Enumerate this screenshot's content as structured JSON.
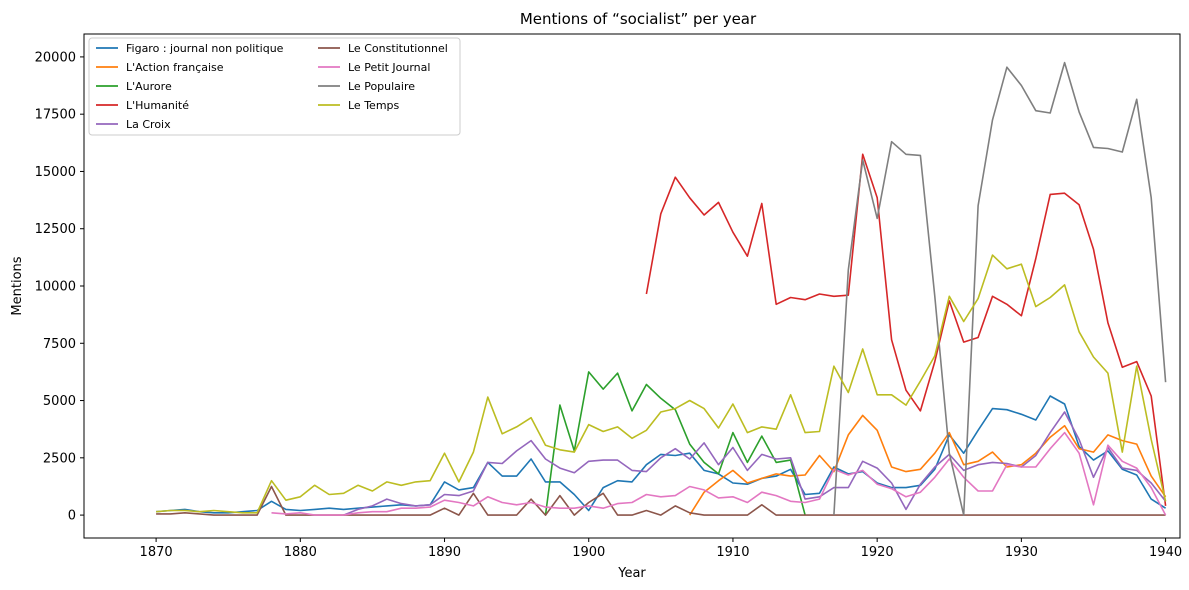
{
  "chart_data": {
    "type": "line",
    "title": "Mentions of “socialist” per year",
    "xlabel": "Year",
    "ylabel": "Mentions",
    "xlim": [
      1865,
      1941
    ],
    "ylim": [
      -1000,
      21000
    ],
    "xticks": [
      1870,
      1880,
      1890,
      1900,
      1910,
      1920,
      1930,
      1940
    ],
    "yticks": [
      0,
      2500,
      5000,
      7500,
      10000,
      12500,
      15000,
      17500,
      20000
    ],
    "grid": false,
    "legend_position": "top-left",
    "x": [
      1870,
      1871,
      1872,
      1873,
      1874,
      1875,
      1876,
      1877,
      1878,
      1879,
      1880,
      1881,
      1882,
      1883,
      1884,
      1885,
      1886,
      1887,
      1888,
      1889,
      1890,
      1891,
      1892,
      1893,
      1894,
      1895,
      1896,
      1897,
      1898,
      1899,
      1900,
      1901,
      1902,
      1903,
      1904,
      1905,
      1906,
      1907,
      1908,
      1909,
      1910,
      1911,
      1912,
      1913,
      1914,
      1915,
      1916,
      1917,
      1918,
      1919,
      1920,
      1921,
      1922,
      1923,
      1924,
      1925,
      1926,
      1927,
      1928,
      1929,
      1930,
      1931,
      1932,
      1933,
      1934,
      1935,
      1936,
      1937,
      1938,
      1939,
      1940
    ],
    "series": [
      {
        "name": "Figaro : journal non politique",
        "color": "#1f77b4",
        "values": [
          150,
          200,
          250,
          150,
          100,
          100,
          150,
          200,
          600,
          250,
          200,
          250,
          300,
          250,
          300,
          350,
          400,
          450,
          400,
          450,
          1450,
          1100,
          1200,
          2300,
          1700,
          1700,
          2450,
          1450,
          1450,
          900,
          200,
          1200,
          1500,
          1450,
          2200,
          2650,
          2600,
          2700,
          1950,
          1800,
          1400,
          1350,
          1600,
          1700,
          2000,
          900,
          950,
          2100,
          1800,
          1900,
          1400,
          1200,
          1200,
          1300,
          2000,
          3500,
          2700,
          3700,
          4650,
          4600,
          4400,
          4150,
          5200,
          4850,
          3000,
          2400,
          2800,
          2000,
          1750,
          700,
          300
        ]
      },
      {
        "name": "L'Action française",
        "color": "#ff7f0e",
        "values": [
          null,
          null,
          null,
          null,
          null,
          null,
          null,
          null,
          null,
          null,
          null,
          null,
          null,
          null,
          null,
          null,
          null,
          null,
          null,
          null,
          null,
          null,
          null,
          null,
          null,
          null,
          null,
          null,
          null,
          null,
          null,
          null,
          null,
          null,
          null,
          null,
          null,
          0,
          1000,
          1500,
          1950,
          1400,
          1600,
          1800,
          1700,
          1750,
          2600,
          1900,
          3500,
          4350,
          3700,
          2100,
          1900,
          2000,
          2700,
          3600,
          2200,
          2350,
          2750,
          2100,
          2200,
          2700,
          3400,
          3900,
          2900,
          2750,
          3500,
          3250,
          3100,
          1700,
          800
        ]
      },
      {
        "name": "L'Aurore",
        "color": "#2ca02c",
        "values": [
          null,
          null,
          null,
          null,
          null,
          null,
          null,
          null,
          null,
          null,
          null,
          null,
          null,
          null,
          null,
          null,
          null,
          null,
          null,
          null,
          null,
          null,
          null,
          null,
          null,
          null,
          null,
          0,
          4800,
          2800,
          6250,
          5500,
          6200,
          4550,
          5700,
          5100,
          4600,
          3100,
          2300,
          1800,
          3600,
          2300,
          3450,
          2300,
          2400,
          0,
          null,
          null,
          null,
          null,
          null,
          null,
          null,
          null,
          null,
          null,
          null,
          null,
          null,
          null,
          null,
          null,
          null,
          null,
          null,
          null,
          null,
          null,
          null,
          null,
          null
        ]
      },
      {
        "name": "L'Humanité",
        "color": "#d62728",
        "values": [
          null,
          null,
          null,
          null,
          null,
          null,
          null,
          null,
          null,
          null,
          null,
          null,
          null,
          null,
          null,
          null,
          null,
          null,
          null,
          null,
          null,
          null,
          null,
          null,
          null,
          null,
          null,
          null,
          null,
          null,
          null,
          null,
          null,
          null,
          9650,
          13150,
          14750,
          13850,
          13100,
          13650,
          12350,
          11300,
          13600,
          9200,
          9500,
          9400,
          9650,
          9550,
          9600,
          15750,
          13850,
          7650,
          5450,
          4550,
          6700,
          9350,
          7550,
          7750,
          9550,
          9200,
          8700,
          11200,
          14000,
          14050,
          13550,
          11600,
          8400,
          6450,
          6700,
          5200,
          400
        ]
      },
      {
        "name": "La Croix",
        "color": "#9467bd",
        "values": [
          null,
          null,
          null,
          null,
          null,
          null,
          null,
          null,
          null,
          null,
          null,
          null,
          null,
          0,
          250,
          400,
          700,
          500,
          400,
          450,
          900,
          850,
          1050,
          2300,
          2250,
          2800,
          3250,
          2450,
          2050,
          1850,
          2350,
          2400,
          2400,
          1950,
          1900,
          2500,
          2900,
          2450,
          3150,
          2200,
          2950,
          1950,
          2650,
          2450,
          2500,
          700,
          800,
          1200,
          1200,
          2350,
          2050,
          1400,
          250,
          1350,
          2100,
          2650,
          1950,
          2200,
          2300,
          2250,
          2100,
          2600,
          3600,
          4500,
          3300,
          1650,
          2950,
          2050,
          1950,
          1400,
          600
        ]
      },
      {
        "name": "Le Constitutionnel",
        "color": "#8c564b",
        "values": [
          50,
          50,
          100,
          50,
          0,
          0,
          0,
          0,
          1250,
          0,
          0,
          0,
          0,
          0,
          0,
          0,
          0,
          0,
          0,
          0,
          300,
          0,
          950,
          0,
          0,
          0,
          700,
          0,
          850,
          0,
          550,
          950,
          0,
          0,
          200,
          0,
          400,
          100,
          0,
          0,
          0,
          0,
          450,
          0,
          0,
          0,
          0,
          0,
          0,
          0,
          0,
          0,
          0,
          0,
          0,
          0,
          0,
          0,
          0,
          0,
          0,
          0,
          0,
          0,
          0,
          0,
          0,
          0,
          0,
          0,
          0
        ]
      },
      {
        "name": "Le Petit Journal",
        "color": "#e377c2",
        "values": [
          null,
          null,
          null,
          null,
          null,
          null,
          null,
          null,
          100,
          50,
          100,
          0,
          0,
          0,
          100,
          150,
          150,
          300,
          300,
          350,
          650,
          550,
          400,
          800,
          550,
          450,
          550,
          350,
          300,
          300,
          400,
          300,
          500,
          550,
          900,
          800,
          850,
          1250,
          1100,
          750,
          800,
          550,
          1000,
          850,
          600,
          550,
          700,
          2000,
          1750,
          1950,
          1350,
          1150,
          800,
          1000,
          1650,
          2450,
          1650,
          1050,
          1050,
          2200,
          2100,
          2100,
          2900,
          3600,
          2700,
          450,
          3050,
          2350,
          2050,
          1200,
          0
        ]
      },
      {
        "name": "Le Populaire",
        "color": "#7f7f7f",
        "values": [
          null,
          null,
          null,
          null,
          null,
          null,
          null,
          null,
          null,
          null,
          null,
          null,
          null,
          null,
          null,
          null,
          null,
          null,
          null,
          null,
          null,
          null,
          null,
          null,
          null,
          null,
          null,
          null,
          null,
          null,
          null,
          null,
          null,
          null,
          null,
          null,
          null,
          null,
          null,
          null,
          null,
          null,
          null,
          null,
          null,
          null,
          null,
          0,
          10700,
          15500,
          12950,
          16300,
          15750,
          15700,
          9550,
          2700,
          0,
          13500,
          17250,
          19550,
          18750,
          17650,
          17550,
          19750,
          17600,
          16050,
          16000,
          15850,
          18150,
          13850,
          5800
        ]
      },
      {
        "name": "Le Temps",
        "color": "#bcbd22",
        "values": [
          150,
          200,
          200,
          150,
          200,
          150,
          100,
          100,
          1500,
          650,
          800,
          1300,
          900,
          950,
          1300,
          1050,
          1450,
          1300,
          1450,
          1500,
          2700,
          1450,
          2750,
          5150,
          3550,
          3850,
          4250,
          3050,
          2850,
          2750,
          3950,
          3650,
          3850,
          3350,
          3700,
          4500,
          4650,
          5000,
          4650,
          3800,
          4850,
          3600,
          3850,
          3750,
          5250,
          3600,
          3650,
          6500,
          5350,
          7250,
          5250,
          5250,
          4800,
          5850,
          6950,
          9550,
          8450,
          9450,
          11350,
          10750,
          10950,
          9100,
          9500,
          10050,
          8000,
          6900,
          6200,
          2750,
          6500,
          3300,
          600
        ]
      }
    ]
  }
}
